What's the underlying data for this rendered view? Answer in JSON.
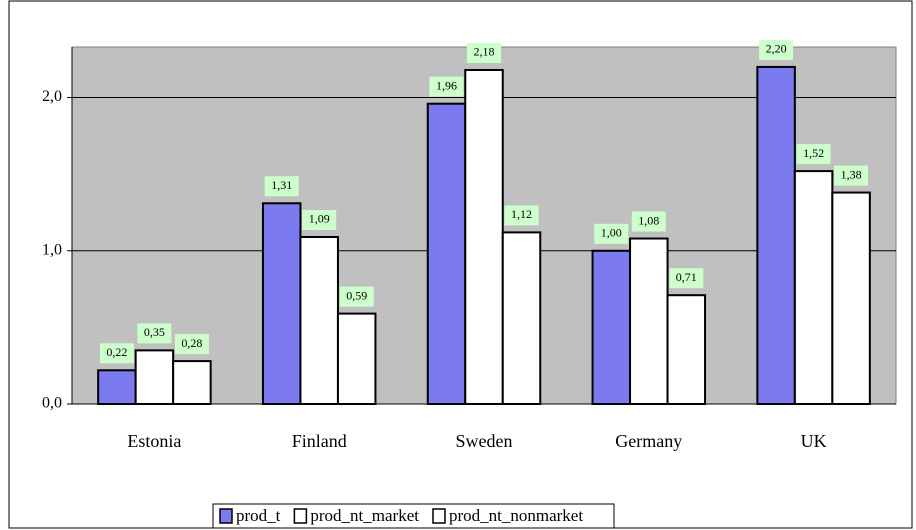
{
  "chart_data": {
    "type": "bar",
    "categories": [
      "Estonia",
      "Finland",
      "Sweden",
      "Germany",
      "UK"
    ],
    "series": [
      {
        "name": "prod_t",
        "color": "#7b7bef",
        "values": [
          0.22,
          1.31,
          1.96,
          1.0,
          2.2
        ],
        "value_labels": [
          "0,22",
          "1,31",
          "1,96",
          "1,00",
          "2,20"
        ]
      },
      {
        "name": "prod_nt_market",
        "color": "#ffffff",
        "values": [
          0.35,
          1.09,
          2.18,
          1.08,
          1.52
        ],
        "value_labels": [
          "0,35",
          "1,09",
          "2,18",
          "1,08",
          "1,52"
        ]
      },
      {
        "name": "prod_nt_nonmarket",
        "color": "#ffffff",
        "values": [
          0.28,
          0.59,
          1.12,
          0.71,
          1.38
        ],
        "value_labels": [
          "0,28",
          "0,59",
          "1,12",
          "0,71",
          "1,38"
        ]
      }
    ],
    "ylim": [
      0,
      2.33
    ],
    "yticks": [
      {
        "value": 0,
        "label": "0,0"
      },
      {
        "value": 1,
        "label": "1,0"
      },
      {
        "value": 2,
        "label": "2,0"
      }
    ],
    "grid": true,
    "legend": "bottom"
  }
}
